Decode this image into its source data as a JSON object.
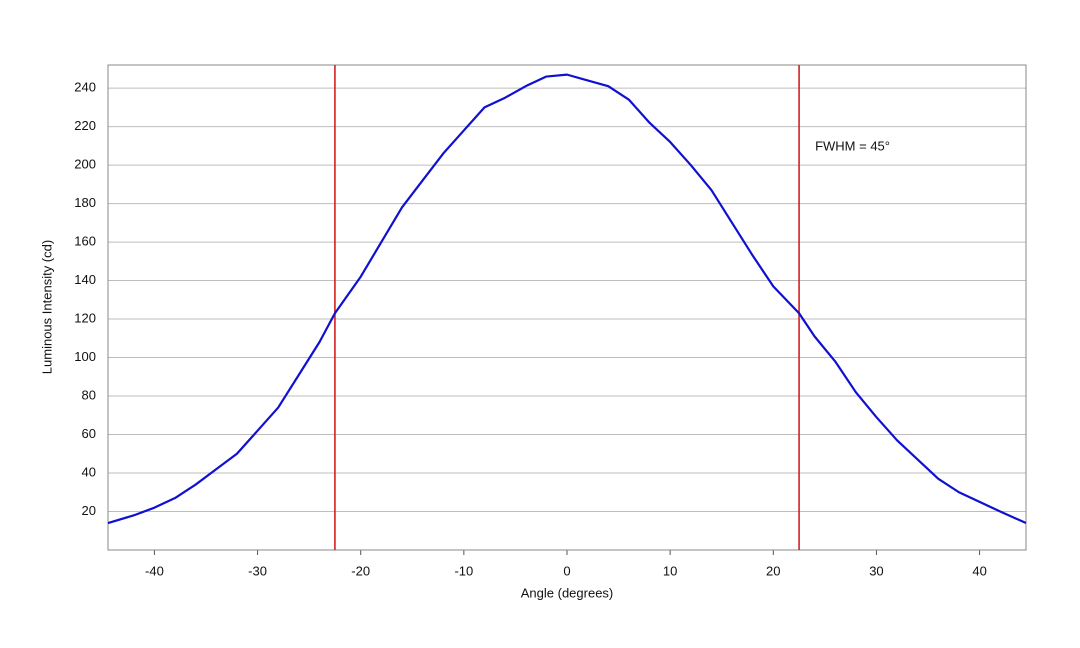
{
  "chart_data": {
    "type": "line",
    "x_label": "Angle (degrees)",
    "y_label": "Luminous Intensity (cd)",
    "annotation": "FWHM = 45°",
    "x": [
      -44.5,
      -42,
      -40,
      -38,
      -36,
      -34,
      -32,
      -30,
      -28,
      -26,
      -24,
      -22.5,
      -20,
      -18,
      -16,
      -14,
      -12,
      -10,
      -8,
      -6,
      -4,
      -2,
      0,
      2,
      4,
      6,
      8,
      10,
      12,
      14,
      16,
      18,
      20,
      22.5,
      24,
      26,
      28,
      30,
      32,
      34,
      36,
      38,
      40,
      42,
      44.5
    ],
    "series": [
      {
        "color": "#1010d0",
        "values": [
          14,
          18,
          22,
          27,
          34,
          42,
          50,
          62,
          74,
          91,
          108,
          123,
          142,
          160,
          178,
          192,
          206,
          218,
          230,
          235,
          241,
          246,
          247,
          244,
          241,
          234,
          222,
          212,
          200,
          187,
          170,
          153,
          137,
          123,
          111,
          98,
          82,
          69,
          57,
          47,
          37,
          30,
          25,
          20,
          14
        ]
      }
    ],
    "vlines": [
      -22.5,
      22.5
    ],
    "vline_color": "#d42020",
    "xlim": [
      -44.5,
      44.5
    ],
    "ylim": [
      0,
      252
    ],
    "xticks": [
      -40,
      -30,
      -20,
      -10,
      0,
      10,
      20,
      30,
      40
    ],
    "yticks": [
      20,
      40,
      60,
      80,
      100,
      120,
      140,
      160,
      180,
      200,
      220,
      240
    ],
    "grid": true
  }
}
